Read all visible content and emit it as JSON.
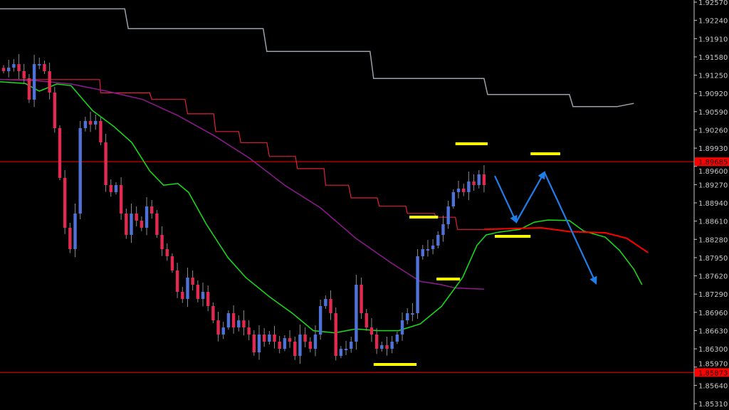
{
  "chart_data": {
    "type": "candlestick",
    "title": "",
    "xlabel": "",
    "ylabel": "",
    "ylim": [
      1.853,
      1.926
    ],
    "y_ticks": [
      "1.92570",
      "1.92240",
      "1.91910",
      "1.91580",
      "1.91250",
      "1.90920",
      "1.90590",
      "1.90260",
      "1.89930",
      "1.89600",
      "1.89270",
      "1.88940",
      "1.88610",
      "1.88280",
      "1.87950",
      "1.87620",
      "1.87290",
      "1.86960",
      "1.86630",
      "1.86300",
      "1.85970",
      "1.85640",
      "1.85310"
    ],
    "grid": false,
    "colors": {
      "background": "#000000",
      "up": "#4f72d9",
      "down": "#e2294f",
      "wick": "#8a8a8a",
      "axis": "#c8c8c8",
      "hline": "#ff0000",
      "gray_line": "#9aa0a8",
      "step_line": "#e0203c",
      "magenta_line": "#8e1a8e",
      "green_line": "#16e016",
      "forecast_red": "#ff0000",
      "yellow_mark": "#ffff00",
      "arrow": "#1e7fe8"
    },
    "closes": [
      1.91322,
      1.91386,
      1.9145,
      1.91322,
      1.91193,
      1.90807,
      1.9145,
      1.9145,
      1.91322,
      1.90935,
      1.90292,
      1.89391,
      1.8849,
      1.88103,
      1.88747,
      1.90292,
      1.90421,
      1.90356,
      1.90421,
      1.90034,
      1.89262,
      1.89134,
      1.89262,
      1.88747,
      1.88361,
      1.88747,
      1.88618,
      1.8849,
      1.88876,
      1.88747,
      1.88361,
      1.88103,
      1.87975,
      1.87717,
      1.87331,
      1.87202,
      1.87589,
      1.8746,
      1.87202,
      1.87331,
      1.87074,
      1.86816,
      1.86559,
      1.86687,
      1.86945,
      1.86687,
      1.86816,
      1.86687,
      1.86559,
      1.86237,
      1.86559,
      1.8643,
      1.86559,
      1.8643,
      1.86301,
      1.86494,
      1.8643,
      1.86172,
      1.86559,
      1.8643,
      1.86301,
      1.86559,
      1.87074,
      1.87202,
      1.86945,
      1.86172,
      1.86301,
      1.86301,
      1.8643,
      1.8746,
      1.86945,
      1.86687,
      1.86559,
      1.86301,
      1.86366,
      1.86301,
      1.8643,
      1.86559,
      1.86816,
      1.86945,
      1.86945,
      1.87975,
      1.88103,
      1.88103,
      1.88168,
      1.88361,
      1.88554,
      1.88876,
      1.89134,
      1.89198,
      1.89134,
      1.89327,
      1.89262,
      1.89455,
      1.89262
    ],
    "horizontal_lines": [
      {
        "price": 1.89685,
        "label": "1.89685"
      },
      {
        "price": 1.85873,
        "label": "1.85873"
      }
    ],
    "lines": {
      "gray": [
        [
          -1,
          1.9245
        ],
        [
          23.7,
          1.9245
        ],
        [
          24.4,
          1.9209
        ],
        [
          50.8,
          1.9209
        ],
        [
          51.5,
          1.9168
        ],
        [
          71.7,
          1.9168
        ],
        [
          72.4,
          1.9119
        ],
        [
          94,
          1.9119
        ],
        [
          94.7,
          1.909
        ],
        [
          110.7,
          1.909
        ],
        [
          111.4,
          1.9068
        ],
        [
          120,
          1.9068
        ],
        [
          123.3,
          1.9074
        ]
      ],
      "step_red": [
        [
          -0.7,
          1.9117
        ],
        [
          18.8,
          1.9117
        ],
        [
          19,
          1.9093
        ],
        [
          28.6,
          1.9093
        ],
        [
          29,
          1.9081
        ],
        [
          35.5,
          1.9081
        ],
        [
          36,
          1.9055
        ],
        [
          41.1,
          1.9055
        ],
        [
          41.5,
          1.9023
        ],
        [
          46,
          1.9023
        ],
        [
          46.4,
          1.9003
        ],
        [
          51.5,
          1.9003
        ],
        [
          52,
          1.8978
        ],
        [
          57.1,
          1.8978
        ],
        [
          57.5,
          1.8956
        ],
        [
          62.7,
          1.8956
        ],
        [
          63,
          1.8926
        ],
        [
          67.5,
          1.8926
        ],
        [
          68,
          1.8903
        ],
        [
          73.1,
          1.8903
        ],
        [
          73.5,
          1.8888
        ],
        [
          78.7,
          1.8888
        ],
        [
          79,
          1.8875
        ],
        [
          84.3,
          1.8875
        ],
        [
          84.6,
          1.8868
        ],
        [
          88.4,
          1.8868
        ],
        [
          88.8,
          1.8846
        ],
        [
          94,
          1.8846
        ]
      ],
      "forecast_red": [
        [
          94,
          1.8846
        ],
        [
          105.2,
          1.8849
        ],
        [
          110.7,
          1.8842
        ],
        [
          117.7,
          1.884
        ],
        [
          121.9,
          1.883
        ],
        [
          126.1,
          1.8804
        ]
      ],
      "magenta": [
        [
          -0.7,
          1.9117
        ],
        [
          6.3,
          1.9115
        ],
        [
          13.2,
          1.9109
        ],
        [
          20.2,
          1.9096
        ],
        [
          27.2,
          1.9081
        ],
        [
          34.1,
          1.9052
        ],
        [
          41.1,
          1.9016
        ],
        [
          48.1,
          1.8975
        ],
        [
          55,
          1.8926
        ],
        [
          62,
          1.8885
        ],
        [
          68.9,
          1.883
        ],
        [
          75.9,
          1.8785
        ],
        [
          81.5,
          1.8752
        ],
        [
          85.7,
          1.8746
        ],
        [
          88.4,
          1.874
        ],
        [
          94,
          1.8738
        ]
      ],
      "green": [
        [
          -0.7,
          1.9113
        ],
        [
          4.2,
          1.911
        ],
        [
          7,
          1.9096
        ],
        [
          10.4,
          1.9109
        ],
        [
          13.2,
          1.9106
        ],
        [
          17.4,
          1.9061
        ],
        [
          21.6,
          1.9032
        ],
        [
          25.1,
          1.9003
        ],
        [
          28.6,
          1.8952
        ],
        [
          31.3,
          1.8926
        ],
        [
          34.1,
          1.8929
        ],
        [
          36.2,
          1.8913
        ],
        [
          39.7,
          1.8855
        ],
        [
          43.9,
          1.8795
        ],
        [
          47.4,
          1.8759
        ],
        [
          52.2,
          1.8723
        ],
        [
          56.4,
          1.8695
        ],
        [
          60.6,
          1.8663
        ],
        [
          64.8,
          1.8659
        ],
        [
          68.9,
          1.8666
        ],
        [
          73.1,
          1.8663
        ],
        [
          77.3,
          1.8663
        ],
        [
          81.5,
          1.8675
        ],
        [
          85.7,
          1.8707
        ],
        [
          89.8,
          1.8759
        ],
        [
          92.6,
          1.8817
        ],
        [
          94.4,
          1.8836
        ],
        [
          96.8,
          1.8841
        ],
        [
          101,
          1.8846
        ],
        [
          103.8,
          1.8859
        ],
        [
          106.5,
          1.8863
        ],
        [
          110.7,
          1.8862
        ],
        [
          113.5,
          1.8843
        ],
        [
          117.7,
          1.8832
        ],
        [
          120.5,
          1.8808
        ],
        [
          123.3,
          1.8774
        ],
        [
          124.9,
          1.8746
        ]
      ]
    },
    "yellow_marks": [
      {
        "from": 88.4,
        "to": 94.7,
        "price": 1.90009
      },
      {
        "from": 103.1,
        "to": 108.9,
        "price": 1.89828
      },
      {
        "from": 79.4,
        "to": 85.0,
        "price": 1.88683
      },
      {
        "from": 96.1,
        "to": 103.1,
        "price": 1.88335
      },
      {
        "from": 84.7,
        "to": 89.3,
        "price": 1.87563
      },
      {
        "from": 72.4,
        "to": 80.8,
        "price": 1.86018
      }
    ],
    "arrows": [
      {
        "from": [
          96.1,
          1.89429
        ],
        "to": [
          100.3,
          1.88592
        ]
      },
      {
        "from": [
          100.3,
          1.88592
        ],
        "to": [
          105.8,
          1.89494
        ]
      },
      {
        "from": [
          105.8,
          1.89494
        ],
        "to": [
          115.9,
          1.87486
        ]
      }
    ]
  }
}
